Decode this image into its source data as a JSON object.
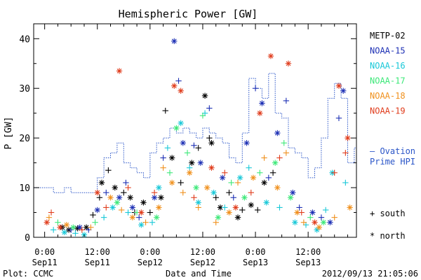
{
  "chart_data": {
    "type": "scatter",
    "title": "Hemispheric Power [GW]",
    "xlabel": "Date and Time",
    "ylabel": "P [GW]",
    "xlim": [
      -2.5,
      71.0
    ],
    "ylim": [
      0,
      43
    ],
    "x_unit": "hours from 2012-09-11 00:00 UT",
    "x_ticks": [
      {
        "x": 0,
        "time": "0:00",
        "date": "Sep11"
      },
      {
        "x": 12,
        "time": "12:00",
        "date": "Sep11"
      },
      {
        "x": 24,
        "time": "0:00",
        "date": "Sep12"
      },
      {
        "x": 36,
        "time": "12:00",
        "date": "Sep12"
      },
      {
        "x": 48,
        "time": "0:00",
        "date": "Sep13"
      },
      {
        "x": 60,
        "time": "12:00",
        "date": "Sep13"
      }
    ],
    "y_ticks": [
      0,
      10,
      20,
      30,
      40
    ],
    "grid": false,
    "legend_placement": "right",
    "marker_legend": [
      {
        "symbol": "+",
        "label": "south"
      },
      {
        "symbol": "*",
        "label": "north"
      }
    ],
    "ovation": {
      "name": "Ovation Prime HPI",
      "label_lines": [
        "– Ovation",
        "Prime HPI"
      ],
      "color": "#2a55c8",
      "steps": [
        {
          "x": -2.5,
          "y": 10
        },
        {
          "x": 2,
          "y": 9
        },
        {
          "x": 4.5,
          "y": 10
        },
        {
          "x": 6,
          "y": 9
        },
        {
          "x": 12,
          "y": 12
        },
        {
          "x": 13.5,
          "y": 16
        },
        {
          "x": 15,
          "y": 17
        },
        {
          "x": 16.5,
          "y": 19
        },
        {
          "x": 18,
          "y": 15
        },
        {
          "x": 19.5,
          "y": 14
        },
        {
          "x": 21,
          "y": 13
        },
        {
          "x": 22.5,
          "y": 12
        },
        {
          "x": 24,
          "y": 17
        },
        {
          "x": 25.5,
          "y": 19
        },
        {
          "x": 27,
          "y": 20
        },
        {
          "x": 28.5,
          "y": 22
        },
        {
          "x": 30,
          "y": 21
        },
        {
          "x": 31.5,
          "y": 22
        },
        {
          "x": 33,
          "y": 21
        },
        {
          "x": 34.5,
          "y": 20
        },
        {
          "x": 36,
          "y": 22
        },
        {
          "x": 37.5,
          "y": 21
        },
        {
          "x": 39,
          "y": 20
        },
        {
          "x": 40.5,
          "y": 19
        },
        {
          "x": 42,
          "y": 16
        },
        {
          "x": 43.5,
          "y": 15
        },
        {
          "x": 45,
          "y": 21
        },
        {
          "x": 46.5,
          "y": 32
        },
        {
          "x": 48,
          "y": 30
        },
        {
          "x": 49.5,
          "y": 28
        },
        {
          "x": 51,
          "y": 33
        },
        {
          "x": 52.5,
          "y": 25
        },
        {
          "x": 54,
          "y": 24
        },
        {
          "x": 55.5,
          "y": 18
        },
        {
          "x": 57,
          "y": 17
        },
        {
          "x": 58.5,
          "y": 16
        },
        {
          "x": 60,
          "y": 12
        },
        {
          "x": 61.5,
          "y": 14
        },
        {
          "x": 63,
          "y": 20
        },
        {
          "x": 64.5,
          "y": 28
        },
        {
          "x": 66,
          "y": 31
        },
        {
          "x": 67.5,
          "y": 28
        },
        {
          "x": 69,
          "y": 15
        },
        {
          "x": 70.5,
          "y": 18
        }
      ]
    },
    "series": [
      {
        "name": "METP-02",
        "color": "#000000",
        "points": [
          {
            "x": 4,
            "y": 2,
            "m": "*"
          },
          {
            "x": 5.5,
            "y": 1.5,
            "m": "*"
          },
          {
            "x": 7.5,
            "y": 1.8,
            "m": "*"
          },
          {
            "x": 9.5,
            "y": 2,
            "m": "*"
          },
          {
            "x": 11,
            "y": 4.5,
            "m": "+"
          },
          {
            "x": 12.5,
            "y": 8,
            "m": "+"
          },
          {
            "x": 13,
            "y": 11,
            "m": "*"
          },
          {
            "x": 14.5,
            "y": 13.5,
            "m": "+"
          },
          {
            "x": 16,
            "y": 10,
            "m": "*"
          },
          {
            "x": 18,
            "y": 9,
            "m": "+"
          },
          {
            "x": 19.5,
            "y": 8,
            "m": "*"
          },
          {
            "x": 20.5,
            "y": 5,
            "m": "+"
          },
          {
            "x": 22.5,
            "y": 7,
            "m": "*"
          },
          {
            "x": 24,
            "y": 5,
            "m": "+"
          },
          {
            "x": 26.5,
            "y": 8,
            "m": "*"
          },
          {
            "x": 27.5,
            "y": 25.5,
            "m": "+"
          },
          {
            "x": 29,
            "y": 16,
            "m": "*"
          },
          {
            "x": 31,
            "y": 11,
            "m": "+"
          },
          {
            "x": 33.5,
            "y": 15,
            "m": "*"
          },
          {
            "x": 35,
            "y": 18,
            "m": "+"
          },
          {
            "x": 36.5,
            "y": 28.5,
            "m": "*"
          },
          {
            "x": 37.5,
            "y": 20,
            "m": "+"
          },
          {
            "x": 38,
            "y": 19,
            "m": "*"
          },
          {
            "x": 39,
            "y": 8,
            "m": "+"
          },
          {
            "x": 40,
            "y": 6,
            "m": "*"
          },
          {
            "x": 42,
            "y": 9,
            "m": "+"
          },
          {
            "x": 44,
            "y": 4,
            "m": "*"
          },
          {
            "x": 45,
            "y": 5.5,
            "m": "+"
          },
          {
            "x": 47,
            "y": 6.5,
            "m": "*"
          },
          {
            "x": 48.5,
            "y": 5.5,
            "m": "+"
          },
          {
            "x": 50,
            "y": 11,
            "m": "*"
          },
          {
            "x": 52,
            "y": 13,
            "m": "+"
          }
        ]
      },
      {
        "name": "NOAA-15",
        "color": "#1c2fb4",
        "points": [
          {
            "x": 6,
            "y": 1.5,
            "m": "+"
          },
          {
            "x": 8,
            "y": 2,
            "m": "*"
          },
          {
            "x": 10,
            "y": 1.5,
            "m": "+"
          },
          {
            "x": 12,
            "y": 5.5,
            "m": "*"
          },
          {
            "x": 14,
            "y": 9,
            "m": "+"
          },
          {
            "x": 17,
            "y": 8,
            "m": "*"
          },
          {
            "x": 18.5,
            "y": 11,
            "m": "+"
          },
          {
            "x": 20,
            "y": 6,
            "m": "*"
          },
          {
            "x": 21.5,
            "y": 4,
            "m": "+"
          },
          {
            "x": 25,
            "y": 8,
            "m": "*"
          },
          {
            "x": 27,
            "y": 16,
            "m": "+"
          },
          {
            "x": 29.5,
            "y": 39.5,
            "m": "*"
          },
          {
            "x": 30.5,
            "y": 31.5,
            "m": "+"
          },
          {
            "x": 31.5,
            "y": 19,
            "m": "*"
          },
          {
            "x": 34,
            "y": 18.5,
            "m": "+"
          },
          {
            "x": 35.5,
            "y": 15,
            "m": "*"
          },
          {
            "x": 37.5,
            "y": 26,
            "m": "+"
          },
          {
            "x": 40.5,
            "y": 12,
            "m": "*"
          },
          {
            "x": 43,
            "y": 8,
            "m": "+"
          },
          {
            "x": 46,
            "y": 19,
            "m": "*"
          },
          {
            "x": 48,
            "y": 30,
            "m": "+"
          },
          {
            "x": 49.5,
            "y": 27,
            "m": "*"
          },
          {
            "x": 51,
            "y": 12,
            "m": "+"
          },
          {
            "x": 53,
            "y": 21,
            "m": "*"
          },
          {
            "x": 55,
            "y": 27.5,
            "m": "+"
          },
          {
            "x": 56.5,
            "y": 9,
            "m": "*"
          },
          {
            "x": 58,
            "y": 6,
            "m": "+"
          },
          {
            "x": 61,
            "y": 5,
            "m": "*"
          },
          {
            "x": 63,
            "y": 4,
            "m": "+"
          },
          {
            "x": 65,
            "y": 3,
            "m": "*"
          },
          {
            "x": 67,
            "y": 24,
            "m": "+"
          },
          {
            "x": 68,
            "y": 29.5,
            "m": "*"
          }
        ]
      },
      {
        "name": "NOAA-16",
        "color": "#18c8d8",
        "points": [
          {
            "x": 2,
            "y": 1.5,
            "m": "+"
          },
          {
            "x": 4.5,
            "y": 1,
            "m": "*"
          },
          {
            "x": 7,
            "y": 0.8,
            "m": "+"
          },
          {
            "x": 9,
            "y": 0.5,
            "m": "*"
          },
          {
            "x": 13.5,
            "y": 4,
            "m": "+"
          },
          {
            "x": 15.5,
            "y": 6,
            "m": "*"
          },
          {
            "x": 19,
            "y": 5,
            "m": "+"
          },
          {
            "x": 22,
            "y": 2.5,
            "m": "*"
          },
          {
            "x": 24.5,
            "y": 3,
            "m": "+"
          },
          {
            "x": 26,
            "y": 10,
            "m": "*"
          },
          {
            "x": 28,
            "y": 18,
            "m": "+"
          },
          {
            "x": 31,
            "y": 23,
            "m": "*"
          },
          {
            "x": 33,
            "y": 14,
            "m": "+"
          },
          {
            "x": 35,
            "y": 7,
            "m": "*"
          },
          {
            "x": 36.5,
            "y": 25,
            "m": "+"
          },
          {
            "x": 38.5,
            "y": 9,
            "m": "*"
          },
          {
            "x": 41,
            "y": 6,
            "m": "+"
          },
          {
            "x": 44.5,
            "y": 12,
            "m": "*"
          },
          {
            "x": 46.5,
            "y": 14,
            "m": "+"
          },
          {
            "x": 50.5,
            "y": 7,
            "m": "*"
          },
          {
            "x": 53.5,
            "y": 6,
            "m": "+"
          },
          {
            "x": 57,
            "y": 3,
            "m": "*"
          },
          {
            "x": 59.5,
            "y": 2.5,
            "m": "+"
          },
          {
            "x": 62,
            "y": 1.5,
            "m": "*"
          },
          {
            "x": 64,
            "y": 5.5,
            "m": "+"
          },
          {
            "x": 65.5,
            "y": 13,
            "m": "*"
          },
          {
            "x": 68.5,
            "y": 11,
            "m": "+"
          }
        ]
      },
      {
        "name": "NOAA-17",
        "color": "#3ce878",
        "points": [
          {
            "x": 3,
            "y": 3,
            "m": "+"
          },
          {
            "x": 6.5,
            "y": 2,
            "m": "*"
          },
          {
            "x": 11.5,
            "y": 3,
            "m": "+"
          },
          {
            "x": 16.5,
            "y": 7,
            "m": "*"
          },
          {
            "x": 21,
            "y": 5,
            "m": "+"
          },
          {
            "x": 25.5,
            "y": 4,
            "m": "*"
          },
          {
            "x": 28.5,
            "y": 13,
            "m": "+"
          },
          {
            "x": 30,
            "y": 22,
            "m": "*"
          },
          {
            "x": 32.5,
            "y": 17,
            "m": "+"
          },
          {
            "x": 34.5,
            "y": 10,
            "m": "*"
          },
          {
            "x": 36,
            "y": 24.5,
            "m": "+"
          },
          {
            "x": 39.5,
            "y": 4,
            "m": "*"
          },
          {
            "x": 42.5,
            "y": 11,
            "m": "+"
          },
          {
            "x": 45.5,
            "y": 8,
            "m": "*"
          },
          {
            "x": 49,
            "y": 13,
            "m": "+"
          },
          {
            "x": 52.5,
            "y": 15,
            "m": "*"
          },
          {
            "x": 54.5,
            "y": 19,
            "m": "+"
          },
          {
            "x": 56,
            "y": 8,
            "m": "*"
          },
          {
            "x": 60.5,
            "y": 4,
            "m": "+"
          },
          {
            "x": 63.5,
            "y": 3,
            "m": "*"
          }
        ]
      },
      {
        "name": "NOAA-18",
        "color": "#f0901c",
        "points": [
          {
            "x": 1,
            "y": 4,
            "m": "+"
          },
          {
            "x": 5,
            "y": 2.5,
            "m": "*"
          },
          {
            "x": 10.5,
            "y": 2,
            "m": "+"
          },
          {
            "x": 15,
            "y": 8,
            "m": "*"
          },
          {
            "x": 17.5,
            "y": 5.5,
            "m": "+"
          },
          {
            "x": 20,
            "y": 4,
            "m": "*"
          },
          {
            "x": 23,
            "y": 3,
            "m": "+"
          },
          {
            "x": 26,
            "y": 6,
            "m": "*"
          },
          {
            "x": 27,
            "y": 14,
            "m": "+"
          },
          {
            "x": 29,
            "y": 11,
            "m": "*"
          },
          {
            "x": 31.5,
            "y": 9,
            "m": "+"
          },
          {
            "x": 33,
            "y": 13,
            "m": "*"
          },
          {
            "x": 35,
            "y": 6,
            "m": "+"
          },
          {
            "x": 37,
            "y": 10,
            "m": "*"
          },
          {
            "x": 39,
            "y": 3,
            "m": "+"
          },
          {
            "x": 42,
            "y": 5,
            "m": "*"
          },
          {
            "x": 44,
            "y": 11,
            "m": "+"
          },
          {
            "x": 47.5,
            "y": 12,
            "m": "*"
          },
          {
            "x": 50,
            "y": 16,
            "m": "+"
          },
          {
            "x": 53,
            "y": 10,
            "m": "*"
          },
          {
            "x": 55,
            "y": 17,
            "m": "+"
          },
          {
            "x": 57.5,
            "y": 5,
            "m": "*"
          },
          {
            "x": 59,
            "y": 3,
            "m": "+"
          },
          {
            "x": 62.5,
            "y": 2,
            "m": "*"
          },
          {
            "x": 66,
            "y": 4,
            "m": "+"
          },
          {
            "x": 69.5,
            "y": 6,
            "m": "*"
          }
        ]
      },
      {
        "name": "NOAA-19",
        "color": "#e03c1c",
        "points": [
          {
            "x": 0.5,
            "y": 3,
            "m": "*"
          },
          {
            "x": 1.5,
            "y": 5,
            "m": "+"
          },
          {
            "x": 3.5,
            "y": 2,
            "m": "*"
          },
          {
            "x": 8.5,
            "y": 1.5,
            "m": "+"
          },
          {
            "x": 12,
            "y": 9,
            "m": "*"
          },
          {
            "x": 14,
            "y": 6,
            "m": "+"
          },
          {
            "x": 17,
            "y": 33.5,
            "m": "*"
          },
          {
            "x": 19,
            "y": 10,
            "m": "+"
          },
          {
            "x": 22,
            "y": 5,
            "m": "*"
          },
          {
            "x": 25,
            "y": 9,
            "m": "+"
          },
          {
            "x": 29.5,
            "y": 30.5,
            "m": "*"
          },
          {
            "x": 31,
            "y": 29.5,
            "m": "*"
          },
          {
            "x": 34,
            "y": 8,
            "m": "+"
          },
          {
            "x": 38,
            "y": 14,
            "m": "*"
          },
          {
            "x": 41,
            "y": 13,
            "m": "+"
          },
          {
            "x": 43.5,
            "y": 6,
            "m": "*"
          },
          {
            "x": 47,
            "y": 9,
            "m": "+"
          },
          {
            "x": 49,
            "y": 25,
            "m": "*"
          },
          {
            "x": 51.5,
            "y": 36.5,
            "m": "*"
          },
          {
            "x": 53.5,
            "y": 16,
            "m": "+"
          },
          {
            "x": 55.5,
            "y": 35,
            "m": "*"
          },
          {
            "x": 58.5,
            "y": 5,
            "m": "+"
          },
          {
            "x": 61.5,
            "y": 3,
            "m": "*"
          },
          {
            "x": 66,
            "y": 13,
            "m": "+"
          },
          {
            "x": 67,
            "y": 30.5,
            "m": "*"
          },
          {
            "x": 68.5,
            "y": 17,
            "m": "+"
          },
          {
            "x": 69,
            "y": 20,
            "m": "*"
          }
        ]
      }
    ]
  },
  "footer": {
    "plot_credit": "Plot: CCMC",
    "timestamp": "2012/09/13 21:05:06"
  }
}
